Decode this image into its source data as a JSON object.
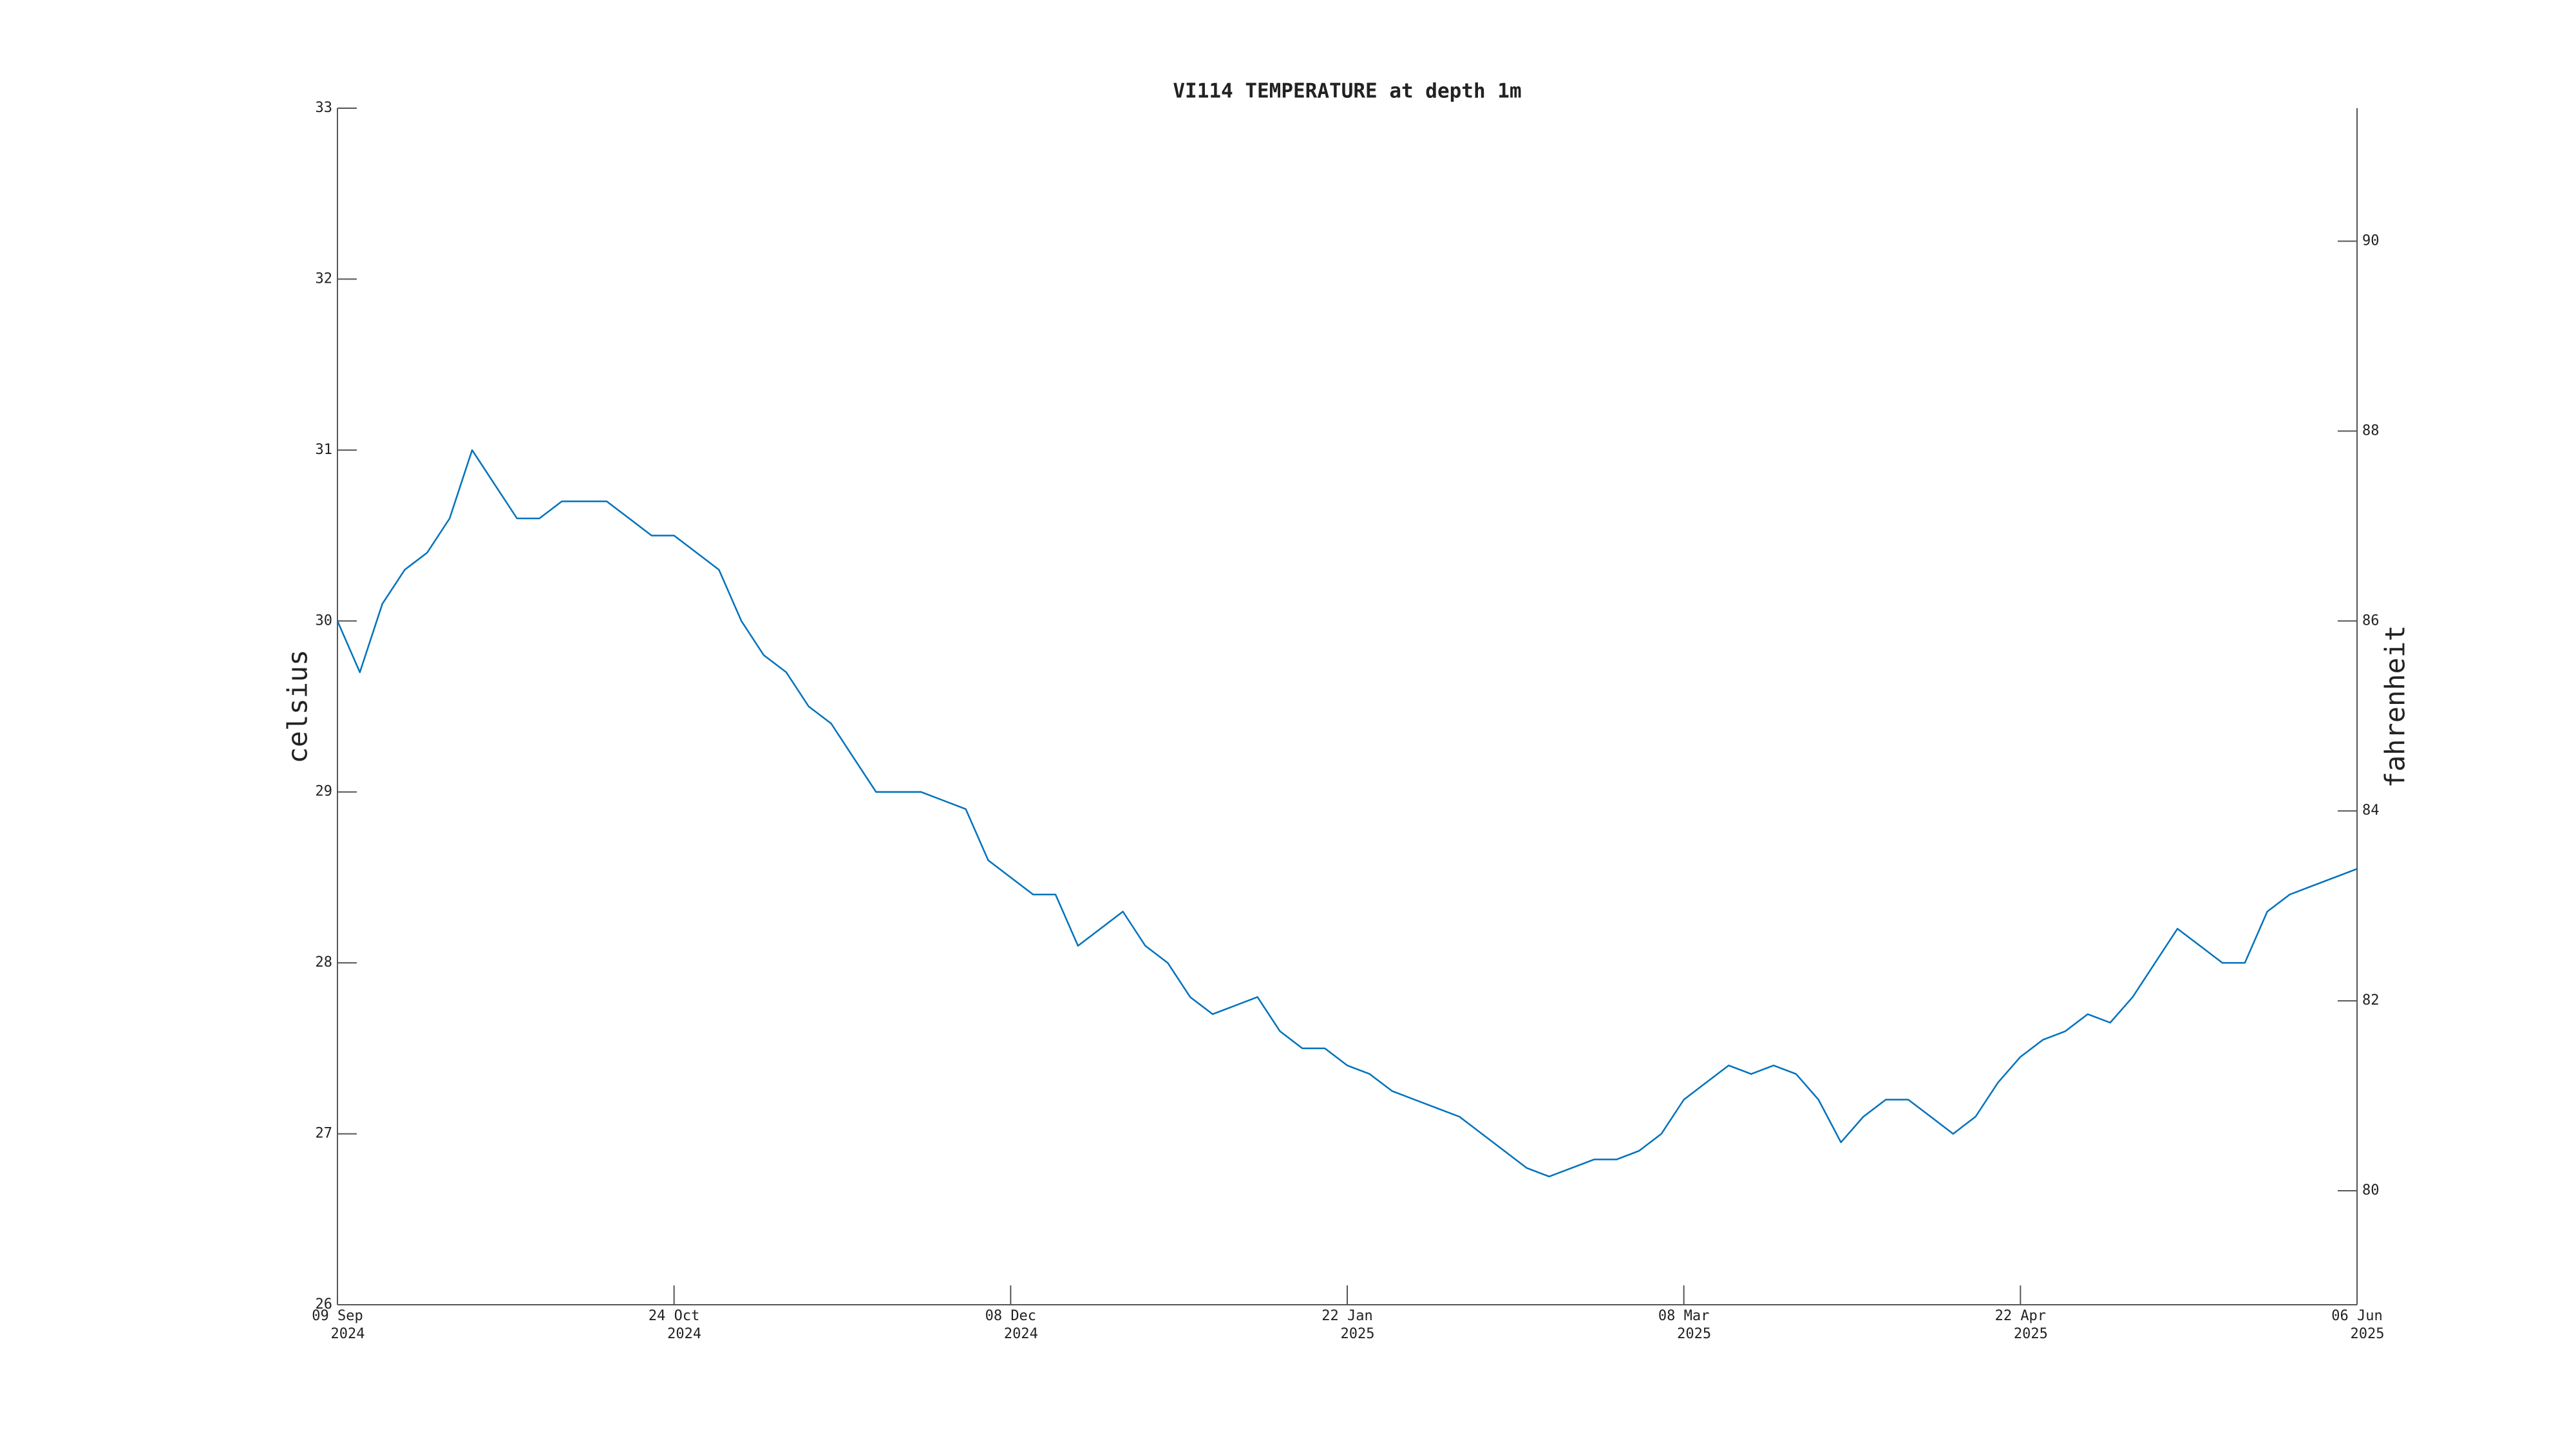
{
  "chart_data": {
    "type": "line",
    "title": "VI114 TEMPERATURE at depth 1m",
    "y_label": "celsius",
    "y2_label": "fahrenheit",
    "x": [
      "2024-09-09",
      "2024-09-12",
      "2024-09-15",
      "2024-09-18",
      "2024-09-21",
      "2024-09-24",
      "2024-09-27",
      "2024-09-30",
      "2024-10-03",
      "2024-10-06",
      "2024-10-09",
      "2024-10-12",
      "2024-10-15",
      "2024-10-18",
      "2024-10-21",
      "2024-10-24",
      "2024-10-27",
      "2024-10-30",
      "2024-11-02",
      "2024-11-05",
      "2024-11-08",
      "2024-11-11",
      "2024-11-14",
      "2024-11-17",
      "2024-11-20",
      "2024-11-23",
      "2024-11-26",
      "2024-11-29",
      "2024-12-02",
      "2024-12-05",
      "2024-12-08",
      "2024-12-11",
      "2024-12-14",
      "2024-12-17",
      "2024-12-20",
      "2024-12-23",
      "2024-12-26",
      "2024-12-29",
      "2025-01-01",
      "2025-01-04",
      "2025-01-07",
      "2025-01-10",
      "2025-01-13",
      "2025-01-16",
      "2025-01-19",
      "2025-01-22",
      "2025-01-25",
      "2025-01-28",
      "2025-01-31",
      "2025-02-03",
      "2025-02-06",
      "2025-02-09",
      "2025-02-12",
      "2025-02-15",
      "2025-02-18",
      "2025-02-21",
      "2025-02-24",
      "2025-02-27",
      "2025-03-02",
      "2025-03-05",
      "2025-03-08",
      "2025-03-11",
      "2025-03-14",
      "2025-03-17",
      "2025-03-20",
      "2025-03-23",
      "2025-03-26",
      "2025-03-29",
      "2025-04-01",
      "2025-04-04",
      "2025-04-07",
      "2025-04-10",
      "2025-04-13",
      "2025-04-16",
      "2025-04-19",
      "2025-04-22",
      "2025-04-25",
      "2025-04-28",
      "2025-05-01",
      "2025-05-04",
      "2025-05-07",
      "2025-05-10",
      "2025-05-13",
      "2025-05-16",
      "2025-05-19",
      "2025-05-22",
      "2025-05-25",
      "2025-05-28",
      "2025-05-31",
      "2025-06-03",
      "2025-06-06"
    ],
    "series": [
      {
        "color": "#0072bd",
        "values": [
          30.0,
          29.7,
          30.1,
          30.3,
          30.4,
          30.6,
          31.0,
          30.8,
          30.6,
          30.6,
          30.7,
          30.7,
          30.7,
          30.6,
          30.5,
          30.5,
          30.4,
          30.3,
          30.0,
          29.8,
          29.7,
          29.5,
          29.4,
          29.2,
          29.0,
          29.0,
          29.0,
          28.95,
          28.9,
          28.6,
          28.5,
          28.4,
          28.4,
          28.1,
          28.2,
          28.3,
          28.1,
          28.0,
          27.8,
          27.7,
          27.75,
          27.8,
          27.6,
          27.5,
          27.5,
          27.4,
          27.35,
          27.25,
          27.2,
          27.15,
          27.1,
          27.0,
          26.9,
          26.8,
          26.75,
          26.8,
          26.85,
          26.85,
          26.9,
          27.0,
          27.2,
          27.3,
          27.4,
          27.35,
          27.4,
          27.35,
          27.2,
          26.95,
          27.1,
          27.2,
          27.2,
          27.1,
          27.0,
          27.1,
          27.3,
          27.45,
          27.55,
          27.6,
          27.7,
          27.65,
          27.8,
          28.0,
          28.2,
          28.1,
          28.0,
          28.0,
          28.3,
          28.4,
          28.45,
          28.5,
          28.55
        ]
      }
    ],
    "xlim": [
      "2024-09-09",
      "2025-06-06"
    ],
    "xticks": [
      {
        "value": "2024-09-09",
        "label": [
          "09 Sep",
          "2024"
        ]
      },
      {
        "value": "2024-10-24",
        "label": [
          "24 Oct",
          "2024"
        ]
      },
      {
        "value": "2024-12-08",
        "label": [
          "08 Dec",
          "2024"
        ]
      },
      {
        "value": "2025-01-22",
        "label": [
          "22 Jan",
          "2025"
        ]
      },
      {
        "value": "2025-03-08",
        "label": [
          "08 Mar",
          "2025"
        ]
      },
      {
        "value": "2025-04-22",
        "label": [
          "22 Apr",
          "2025"
        ]
      },
      {
        "value": "2025-06-06",
        "label": [
          "06 Jun",
          "2025"
        ]
      }
    ],
    "ylim": [
      26,
      33
    ],
    "yticks": [
      26,
      27,
      28,
      29,
      30,
      31,
      32,
      33
    ],
    "y2lim": [
      78.8,
      91.4
    ],
    "y2ticks": [
      80,
      82,
      84,
      86,
      88,
      90
    ],
    "grid": false
  }
}
